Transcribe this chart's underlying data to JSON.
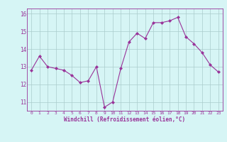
{
  "x": [
    0,
    1,
    2,
    3,
    4,
    5,
    6,
    7,
    8,
    9,
    10,
    11,
    12,
    13,
    14,
    15,
    16,
    17,
    18,
    19,
    20,
    21,
    22,
    23
  ],
  "y": [
    12.8,
    13.6,
    13.0,
    12.9,
    12.8,
    12.5,
    12.1,
    12.2,
    13.0,
    10.7,
    11.0,
    12.9,
    14.4,
    14.9,
    14.6,
    15.5,
    15.5,
    15.6,
    15.8,
    14.7,
    14.3,
    13.8,
    13.1,
    12.7
  ],
  "xlabel": "Windchill (Refroidissement éolien,°C)",
  "ylim": [
    10.5,
    16.3
  ],
  "xlim": [
    -0.5,
    23.5
  ],
  "yticks": [
    11,
    12,
    13,
    14,
    15,
    16
  ],
  "xtick_labels": [
    "0",
    "1",
    "2",
    "3",
    "4",
    "5",
    "6",
    "7",
    "8",
    "9",
    "10",
    "11",
    "12",
    "13",
    "14",
    "15",
    "16",
    "17",
    "18",
    "19",
    "20",
    "21",
    "22",
    "23"
  ],
  "bg_color": "#d6f5f5",
  "line_color": "#993399",
  "marker_color": "#993399",
  "grid_color": "#aacccc"
}
